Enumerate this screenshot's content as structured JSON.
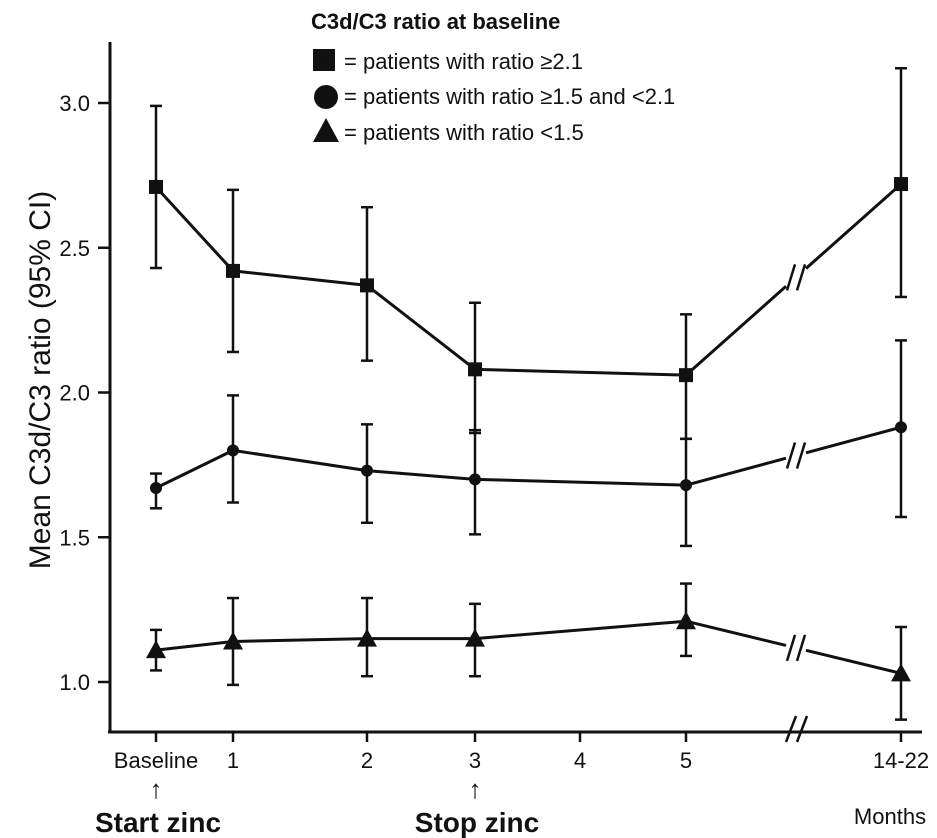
{
  "chart_data": {
    "type": "line",
    "ylabel": "Mean C3d/C3 ratio (95% CI)",
    "xlabel": "Months",
    "ylim": [
      0.85,
      3.3
    ],
    "y_ticks": [
      "1.0",
      "1.5",
      "2.0",
      "2.5",
      "3.0"
    ],
    "y_tick_values": [
      1.0,
      1.5,
      2.0,
      2.5,
      3.0
    ],
    "categories": [
      "Baseline",
      "1",
      "2",
      "3",
      "4",
      "5",
      "14-22"
    ],
    "axis_break_between": [
      "5",
      "14-22"
    ],
    "legend": {
      "title": "C3d/C3 ratio at baseline",
      "placement": "top-center",
      "entries": [
        {
          "marker": "square",
          "text": "= patients with ratio ≥2.1"
        },
        {
          "marker": "circle",
          "text": "= patients with ratio ≥1.5 and <2.1"
        },
        {
          "marker": "triangle",
          "text": "= patients with ratio <1.5"
        }
      ]
    },
    "series": [
      {
        "marker": "square",
        "x": [
          "Baseline",
          "1",
          "2",
          "3",
          "5",
          "14-22"
        ],
        "values": [
          2.71,
          2.42,
          2.37,
          2.08,
          2.06,
          2.72
        ],
        "ci_lower": [
          2.43,
          2.14,
          2.11,
          1.86,
          1.84,
          2.33
        ],
        "ci_upper": [
          2.99,
          2.7,
          2.64,
          2.31,
          2.27,
          3.12
        ]
      },
      {
        "marker": "circle",
        "x": [
          "Baseline",
          "1",
          "2",
          "3",
          "5",
          "14-22"
        ],
        "values": [
          1.67,
          1.8,
          1.73,
          1.7,
          1.68,
          1.88
        ],
        "ci_lower": [
          1.6,
          1.62,
          1.55,
          1.51,
          1.47,
          1.57
        ],
        "ci_upper": [
          1.72,
          1.99,
          1.89,
          1.87,
          1.84,
          2.18
        ]
      },
      {
        "marker": "triangle",
        "x": [
          "Baseline",
          "1",
          "2",
          "3",
          "5",
          "14-22"
        ],
        "values": [
          1.11,
          1.14,
          1.15,
          1.15,
          1.21,
          1.03
        ],
        "ci_lower": [
          1.04,
          0.99,
          1.02,
          1.02,
          1.09,
          0.87
        ],
        "ci_upper": [
          1.18,
          1.29,
          1.29,
          1.27,
          1.34,
          1.19
        ]
      }
    ],
    "annotations": [
      {
        "at": "Baseline",
        "text": "Start zinc",
        "arrow": "↑"
      },
      {
        "at": "3",
        "text": "Stop zinc",
        "arrow": "↑"
      }
    ]
  }
}
